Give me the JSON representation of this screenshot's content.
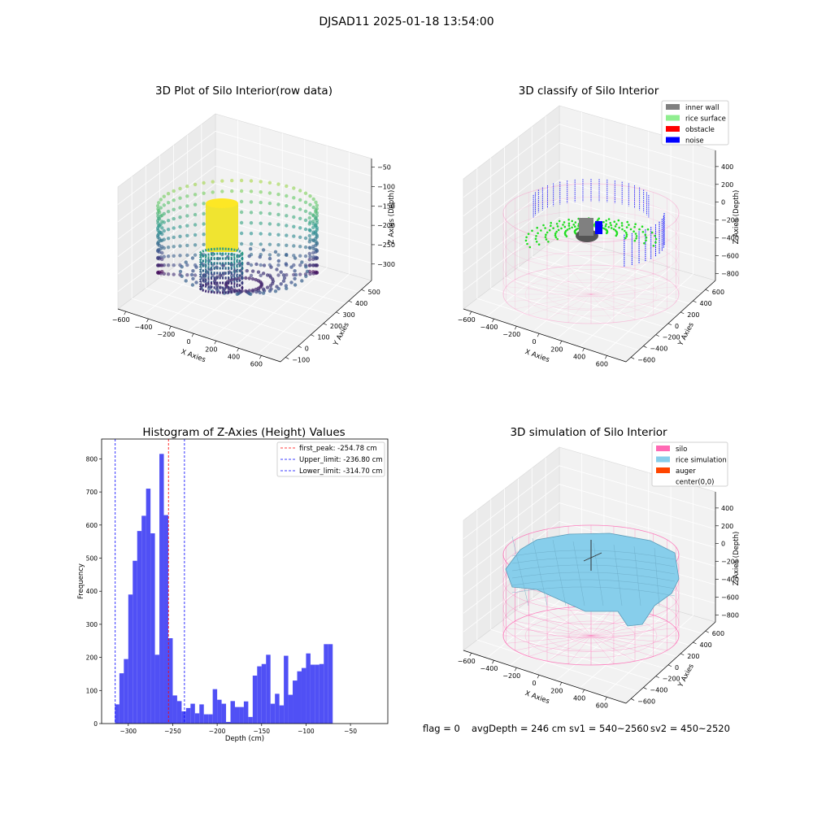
{
  "figure": {
    "suptitle": "DJSAD11 2025-01-18 13:54:00",
    "footer": {
      "flag": "flag = 0",
      "avg": "avgDepth = 246 cm",
      "sv1": "sv1 = 540~2560",
      "sv2": "sv2 = 450~2520"
    }
  },
  "chart_data": [
    {
      "type": "scatter",
      "title": "3D Plot of Silo Interior(row data)",
      "xlabel": "X Axies",
      "ylabel": "Y Axies",
      "zlabel": "Z Axies (Depth)",
      "xticks": [
        "−600",
        "−400",
        "−200",
        "0",
        "200",
        "400",
        "600"
      ],
      "yticks": [
        "−100",
        "0",
        "100",
        "200",
        "300",
        "400",
        "500"
      ],
      "zticks": [
        "−50",
        "−100",
        "−150",
        "−200",
        "−250",
        "−300"
      ],
      "colormap": "viridis"
    },
    {
      "type": "scatter",
      "title": "3D classify of Silo Interior",
      "xlabel": "X Axies",
      "ylabel": "Y Axies",
      "zlabel": "Z Axies (Depth)",
      "xticks": [
        "−600",
        "−400",
        "−200",
        "0",
        "200",
        "400",
        "600"
      ],
      "yticks": [
        "−600",
        "−400",
        "−200",
        "0",
        "200",
        "400",
        "600"
      ],
      "zticks": [
        "400",
        "200",
        "0",
        "−200",
        "−400",
        "−600",
        "−800"
      ],
      "legend": [
        {
          "label": "inner wall",
          "color": "#808080"
        },
        {
          "label": "rice surface",
          "color": "#90ee90"
        },
        {
          "label": "obstacle",
          "color": "#ff0000"
        },
        {
          "label": "noise",
          "color": "#0000ff"
        }
      ]
    },
    {
      "type": "bar",
      "title": "Histogram of Z-Axies (Height) Values",
      "xlabel": "Depth (cm)",
      "ylabel": "Frequency",
      "xlim": [
        -330,
        -8
      ],
      "ylim": [
        0,
        860
      ],
      "bin_width": 5,
      "bin_start": -315,
      "values": [
        58,
        152,
        195,
        390,
        492,
        582,
        628,
        710,
        575,
        208,
        815,
        630,
        258,
        85,
        68,
        37,
        47,
        60,
        31,
        58,
        28,
        28,
        104,
        72,
        60,
        5,
        68,
        50,
        50,
        67,
        20,
        145,
        173,
        180,
        208,
        60,
        90,
        55,
        205,
        87,
        130,
        158,
        168,
        212,
        178,
        178,
        180,
        240,
        240
      ],
      "xticks": [
        -300,
        -250,
        -200,
        -150,
        -100,
        -50
      ],
      "xtick_labels": [
        "−300",
        "−250",
        "−200",
        "−150",
        "−100",
        "−50"
      ],
      "yticks": [
        0,
        100,
        200,
        300,
        400,
        500,
        600,
        700,
        800
      ],
      "bar_color": "#5050f5",
      "vlines": [
        {
          "label": "first_peak: -254.78 cm",
          "value": -254.78,
          "color": "#ff0000"
        },
        {
          "label": "Upper_limit: -236.80 cm",
          "value": -236.8,
          "color": "#0000ff"
        },
        {
          "label": "Lower_limit: -314.70 cm",
          "value": -314.7,
          "color": "#0000ff"
        }
      ]
    },
    {
      "type": "area",
      "title": "3D simulation of Silo Interior",
      "xlabel": "X Axies",
      "ylabel": "Y Axies",
      "zlabel": "Z Axies (Depth)",
      "xticks": [
        "−600",
        "−400",
        "−200",
        "0",
        "200",
        "400",
        "600"
      ],
      "yticks": [
        "−600",
        "−400",
        "−200",
        "0",
        "200",
        "400",
        "600"
      ],
      "zticks": [
        "400",
        "200",
        "0",
        "−200",
        "−400",
        "−600",
        "−800"
      ],
      "legend": [
        {
          "label": "silo",
          "color": "#ff69b4"
        },
        {
          "label": "rice simulation",
          "color": "#87ceeb"
        },
        {
          "label": "auger",
          "color": "#ff4500"
        },
        {
          "label": "center(0,0)",
          "color": ""
        }
      ]
    }
  ]
}
